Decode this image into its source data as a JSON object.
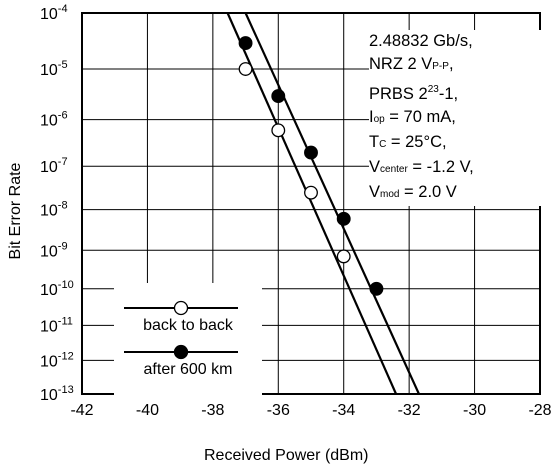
{
  "chart_data": {
    "type": "line",
    "xlabel": "Received Power (dBm)",
    "ylabel": "Bit Error Rate",
    "xlim": [
      -42,
      -28
    ],
    "x_ticks": [
      -42,
      -40,
      -38,
      -36,
      -34,
      -32,
      -30,
      -28
    ],
    "x_tick_labels": [
      "-42",
      "-40",
      "-38",
      "-36",
      "-34",
      "-32",
      "-30",
      "-28"
    ],
    "y_scale": "log-of-log",
    "ylim": [
      1e-13,
      0.0001
    ],
    "y_ticks": [
      {
        "base": "10",
        "exp": "-4",
        "value": 0.0001
      },
      {
        "base": "10",
        "exp": "-5",
        "value": 1e-05
      },
      {
        "base": "10",
        "exp": "-6",
        "value": 1e-06
      },
      {
        "base": "10",
        "exp": "-7",
        "value": 1e-07
      },
      {
        "base": "10",
        "exp": "-8",
        "value": 1e-08
      },
      {
        "base": "10",
        "exp": "-9",
        "value": 1e-09
      },
      {
        "base": "10",
        "exp": "-10",
        "value": 1e-10
      },
      {
        "base": "10",
        "exp": "-11",
        "value": 1e-11
      },
      {
        "base": "10",
        "exp": "-12",
        "value": 1e-12
      },
      {
        "base": "10",
        "exp": "-13",
        "value": 1e-13
      }
    ],
    "grid": true,
    "legend_position": "bottom-left",
    "series": [
      {
        "name": "back to back",
        "marker": "open-circle",
        "color": "#000000",
        "points": [
          {
            "x": -37.0,
            "y": 1e-05
          },
          {
            "x": -36.0,
            "y": 6e-07
          },
          {
            "x": -35.0,
            "y": 2.5e-08
          },
          {
            "x": -34.0,
            "y": 7e-10
          }
        ],
        "fit_line": [
          {
            "x": -37.55,
            "y": 0.0001
          },
          {
            "x": -32.4,
            "y": 1e-13
          }
        ]
      },
      {
        "name": "after 600 km",
        "marker": "filled-circle",
        "color": "#000000",
        "points": [
          {
            "x": -37.0,
            "y": 3e-05
          },
          {
            "x": -36.0,
            "y": 3e-06
          },
          {
            "x": -35.0,
            "y": 2e-07
          },
          {
            "x": -34.0,
            "y": 6e-09
          },
          {
            "x": -33.0,
            "y": 1e-10
          }
        ],
        "fit_line": [
          {
            "x": -37.0,
            "y": 0.0001
          },
          {
            "x": -31.7,
            "y": 1e-13
          }
        ]
      }
    ]
  },
  "annotation": {
    "bitrate": "2.48832 Gb/s,",
    "nrz_prefix": "NRZ 2 V",
    "nrz_sub": "P-P",
    "nrz_suffix": ",",
    "prbs_prefix": "PRBS 2",
    "prbs_sup": "23",
    "prbs_suffix": "-1,",
    "iop_main": "I",
    "iop_sub": "op",
    "iop_value": " = 70 mA,",
    "tc_main": "T",
    "tc_sub": "C",
    "tc_value": " = 25°C,",
    "vcenter_main": "V",
    "vcenter_sub": "center",
    "vcenter_value": " = -1.2 V,",
    "vmod_main": "V",
    "vmod_sub": "mod",
    "vmod_value": " = 2.0 V"
  }
}
